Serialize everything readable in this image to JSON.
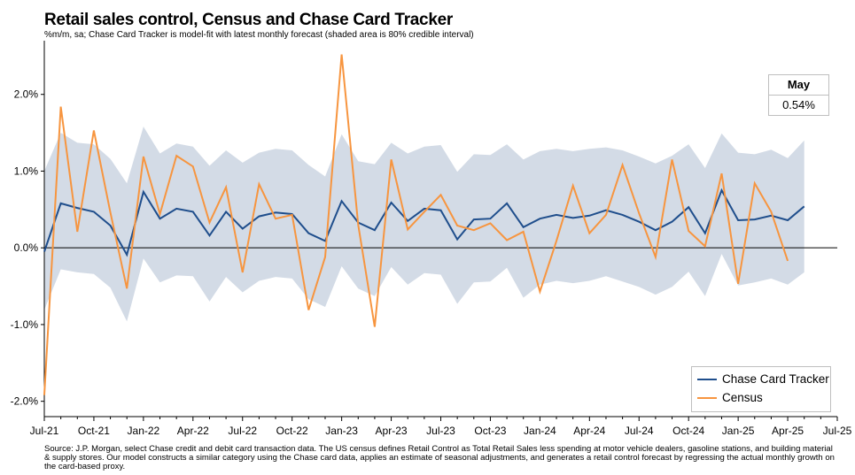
{
  "title": "Retail sales control, Census and Chase Card Tracker",
  "subtitle": "%m/m, sa; Chase Card Tracker is model-fit with latest monthly forecast (shaded area is 80% credible interval)",
  "callout": {
    "header": "May",
    "value": "0.54%"
  },
  "source": "Source: J.P. Morgan, select Chase credit and debit card transaction data. The US census defines Retail Control as Total Retail Sales less spending at motor vehicle dealers, gasoline stations, and building material & supply stores. Our model constructs a similar category using the Chase card data, applies an estimate of seasonal adjustments, and generates a retail control forecast by regressing the actual monthly growth on the card-based proxy.",
  "colors": {
    "tracker": "#1f4e8c",
    "census": "#f7953f",
    "band": "#d3dbe6"
  },
  "chart_data": {
    "type": "line",
    "x_start": "Jul-21",
    "x_labels": [
      "Jul-21",
      "Oct-21",
      "Jan-22",
      "Apr-22",
      "Jul-22",
      "Oct-22",
      "Jan-23",
      "Apr-23",
      "Jul-23",
      "Oct-23",
      "Jan-24",
      "Apr-24",
      "Jul-24",
      "Oct-24",
      "Jan-25",
      "Apr-25",
      "Jul-25"
    ],
    "y_ticks": [
      "-2.0%",
      "-1.0%",
      "0.0%",
      "1.0%",
      "2.0%"
    ],
    "ylim": [
      -2.2,
      2.7
    ],
    "legend_position": "bottom-right",
    "series": [
      {
        "name": "Chase Card Tracker",
        "values": [
          -0.05,
          0.58,
          0.52,
          0.47,
          0.29,
          -0.09,
          0.73,
          0.38,
          0.51,
          0.47,
          0.16,
          0.47,
          0.25,
          0.41,
          0.46,
          0.44,
          0.19,
          0.09,
          0.61,
          0.33,
          0.23,
          0.59,
          0.35,
          0.51,
          0.49,
          0.11,
          0.37,
          0.38,
          0.58,
          0.27,
          0.38,
          0.43,
          0.39,
          0.42,
          0.49,
          0.43,
          0.34,
          0.23,
          0.34,
          0.53,
          0.19,
          0.75,
          0.36,
          0.37,
          0.42,
          0.36,
          0.54
        ]
      },
      {
        "name": "Census",
        "values": [
          -1.92,
          1.84,
          0.21,
          1.53,
          0.46,
          -0.53,
          1.19,
          0.44,
          1.2,
          1.06,
          0.33,
          0.79,
          -0.32,
          0.83,
          0.38,
          0.43,
          -0.81,
          -0.12,
          2.52,
          0.3,
          -1.03,
          1.15,
          0.24,
          0.47,
          0.69,
          0.29,
          0.23,
          0.32,
          0.1,
          0.21,
          -0.57,
          0.09,
          0.81,
          0.19,
          0.43,
          1.08,
          0.45,
          -0.12,
          1.15,
          0.22,
          0.02,
          0.97,
          -0.47,
          0.84,
          0.47,
          -0.17
        ]
      }
    ],
    "interval_80": {
      "upper": [
        1.0,
        1.5,
        1.37,
        1.35,
        1.16,
        0.84,
        1.58,
        1.23,
        1.36,
        1.32,
        1.07,
        1.27,
        1.11,
        1.24,
        1.29,
        1.27,
        1.08,
        0.93,
        1.48,
        1.13,
        1.09,
        1.37,
        1.23,
        1.32,
        1.34,
        0.99,
        1.22,
        1.21,
        1.35,
        1.15,
        1.26,
        1.29,
        1.26,
        1.29,
        1.31,
        1.27,
        1.19,
        1.1,
        1.2,
        1.35,
        1.04,
        1.49,
        1.24,
        1.22,
        1.28,
        1.17,
        1.4
      ],
      "lower": [
        -0.81,
        -0.28,
        -0.32,
        -0.34,
        -0.52,
        -0.96,
        -0.14,
        -0.45,
        -0.36,
        -0.37,
        -0.7,
        -0.38,
        -0.58,
        -0.43,
        -0.38,
        -0.4,
        -0.67,
        -0.77,
        -0.24,
        -0.53,
        -0.63,
        -0.25,
        -0.48,
        -0.33,
        -0.35,
        -0.73,
        -0.45,
        -0.44,
        -0.26,
        -0.65,
        -0.48,
        -0.43,
        -0.46,
        -0.43,
        -0.37,
        -0.44,
        -0.51,
        -0.61,
        -0.51,
        -0.31,
        -0.63,
        -0.08,
        -0.49,
        -0.45,
        -0.4,
        -0.48,
        -0.32
      ]
    }
  }
}
